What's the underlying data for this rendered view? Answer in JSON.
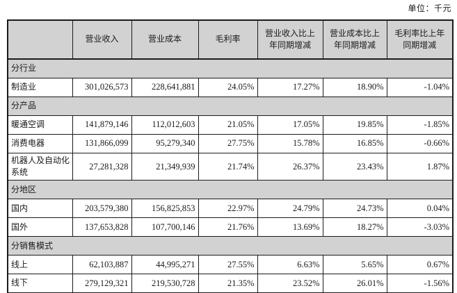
{
  "meta": {
    "unit_label": "单位：千元"
  },
  "table": {
    "columns": [
      "",
      "营业收入",
      "营业成本",
      "毛利率",
      "营业收入比上年同期增减",
      "营业成本比上年同期增减",
      "毛利率比上年同期增减"
    ],
    "rows": [
      {
        "type": "section",
        "label": "分行业"
      },
      {
        "type": "data",
        "label": "制造业",
        "values": [
          "301,026,573",
          "228,641,881",
          "24.05%",
          "17.27%",
          "18.90%",
          "-1.04%"
        ]
      },
      {
        "type": "section",
        "label": "分产品"
      },
      {
        "type": "data",
        "label": "暖通空调",
        "values": [
          "141,879,146",
          "112,012,603",
          "21.05%",
          "17.05%",
          "19.85%",
          "-1.85%"
        ]
      },
      {
        "type": "data",
        "label": "消费电器",
        "values": [
          "131,866,099",
          "95,279,340",
          "27.75%",
          "15.78%",
          "16.85%",
          "-0.66%"
        ]
      },
      {
        "type": "data",
        "label": "机器人及自动化系统",
        "values": [
          "27,281,328",
          "21,349,939",
          "21.74%",
          "26.37%",
          "23.43%",
          "1.87%"
        ]
      },
      {
        "type": "section",
        "label": "分地区"
      },
      {
        "type": "data",
        "label": "国内",
        "values": [
          "203,579,380",
          "156,825,853",
          "22.97%",
          "24.79%",
          "24.73%",
          "0.04%"
        ]
      },
      {
        "type": "data",
        "label": "国外",
        "values": [
          "137,653,828",
          "107,700,146",
          "21.76%",
          "13.69%",
          "18.27%",
          "-3.03%"
        ]
      },
      {
        "type": "section",
        "label": "分销售模式"
      },
      {
        "type": "data",
        "label": "线上",
        "values": [
          "62,103,887",
          "44,995,271",
          "27.55%",
          "6.63%",
          "5.65%",
          "0.67%"
        ]
      },
      {
        "type": "data",
        "label": "线下",
        "values": [
          "279,129,321",
          "219,530,728",
          "21.35%",
          "23.52%",
          "26.01%",
          "-1.56%"
        ]
      }
    ],
    "colors": {
      "header_bg": "#d2d2d2",
      "section_bg": "#d2d2d2",
      "border": "#1a1a1a",
      "text": "#1a1a1a"
    }
  }
}
